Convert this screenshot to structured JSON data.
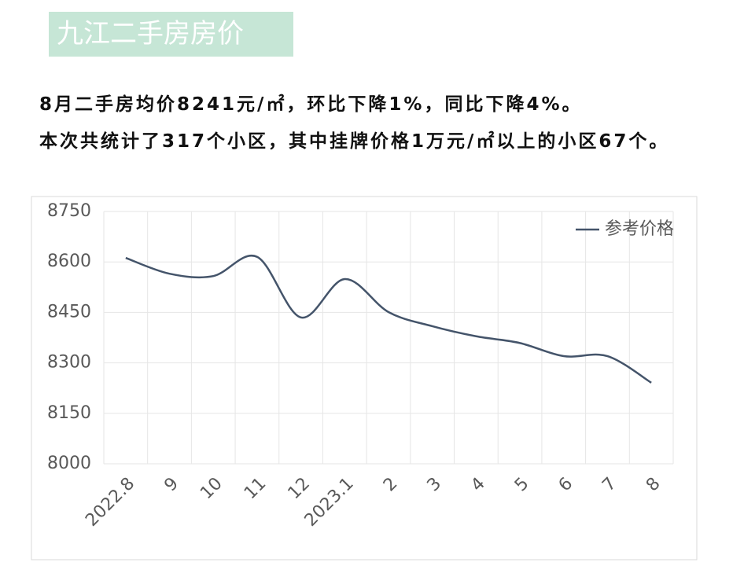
{
  "header": {
    "title": "九江二手房房价"
  },
  "paragraphs": [
    "8月二手房均价8241元/㎡，环比下降1%，同比下降4%。",
    "本次共统计了317个小区，其中挂牌价格1万元/㎡以上的小区67个。"
  ],
  "chart_data": {
    "type": "line",
    "categories": [
      "2022.8",
      "9",
      "10",
      "11",
      "12",
      "2023.1",
      "2",
      "3",
      "4",
      "5",
      "6",
      "7",
      "8"
    ],
    "series": [
      {
        "name": "参考价格",
        "color": "#44546a",
        "values": [
          8612,
          8565,
          8558,
          8615,
          8435,
          8549,
          8451,
          8409,
          8379,
          8359,
          8320,
          8320,
          8241
        ]
      }
    ],
    "ylim": [
      8000,
      8750
    ],
    "yticks": [
      8000,
      8150,
      8300,
      8450,
      8600,
      8750
    ],
    "grid": true,
    "legend": "top-right",
    "smooth": true
  }
}
